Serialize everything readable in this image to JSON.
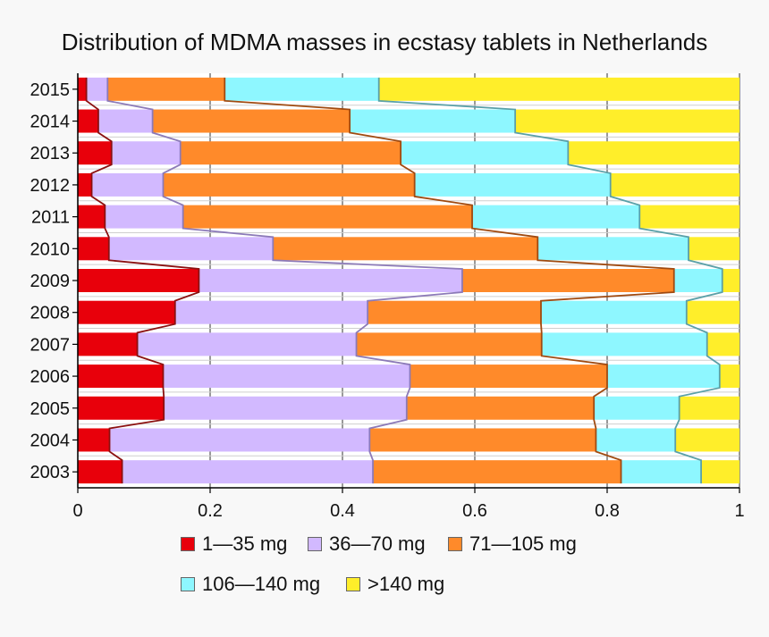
{
  "chart_data": {
    "type": "bar",
    "orientation": "horizontal",
    "stacked": true,
    "title": "Distribution of MDMA masses in ecstasy tablets in Netherlands",
    "categories": [
      "2015",
      "2014",
      "2013",
      "2012",
      "2011",
      "2010",
      "2009",
      "2008",
      "2007",
      "2006",
      "2005",
      "2004",
      "2003"
    ],
    "xlim": [
      0,
      1
    ],
    "x_ticks": [
      "0",
      "0.2",
      "0.4",
      "0.6",
      "0.8",
      "1"
    ],
    "grid": true,
    "legend_position": "bottom",
    "series": [
      {
        "name": "1—35 mg",
        "color": "#e8000b",
        "line_color": "#8b1010",
        "values": [
          0.013,
          0.031,
          0.051,
          0.021,
          0.041,
          0.047,
          0.183,
          0.147,
          0.09,
          0.129,
          0.13,
          0.048,
          0.067
        ]
      },
      {
        "name": "36—70 mg",
        "color": "#d2b9ff",
        "line_color": "#8c7ab8",
        "values": [
          0.032,
          0.082,
          0.104,
          0.108,
          0.118,
          0.248,
          0.398,
          0.291,
          0.331,
          0.373,
          0.367,
          0.393,
          0.379
        ]
      },
      {
        "name": "71—105 mg",
        "color": "#ff8a2a",
        "line_color": "#a04a10",
        "values": [
          0.177,
          0.298,
          0.333,
          0.38,
          0.437,
          0.4,
          0.32,
          0.262,
          0.28,
          0.298,
          0.283,
          0.342,
          0.375
        ]
      },
      {
        "name": "106—140 mg",
        "color": "#8ef7ff",
        "line_color": "#5aa0a8",
        "values": [
          0.233,
          0.25,
          0.253,
          0.296,
          0.253,
          0.228,
          0.073,
          0.22,
          0.25,
          0.17,
          0.129,
          0.12,
          0.121
        ]
      },
      {
        "name": ">140 mg",
        "color": "#ffee2a",
        "line_color": "#b8a520",
        "values": [
          0.545,
          0.339,
          0.259,
          0.195,
          0.151,
          0.077,
          0.026,
          0.08,
          0.049,
          0.03,
          0.091,
          0.097,
          0.058
        ]
      }
    ]
  }
}
